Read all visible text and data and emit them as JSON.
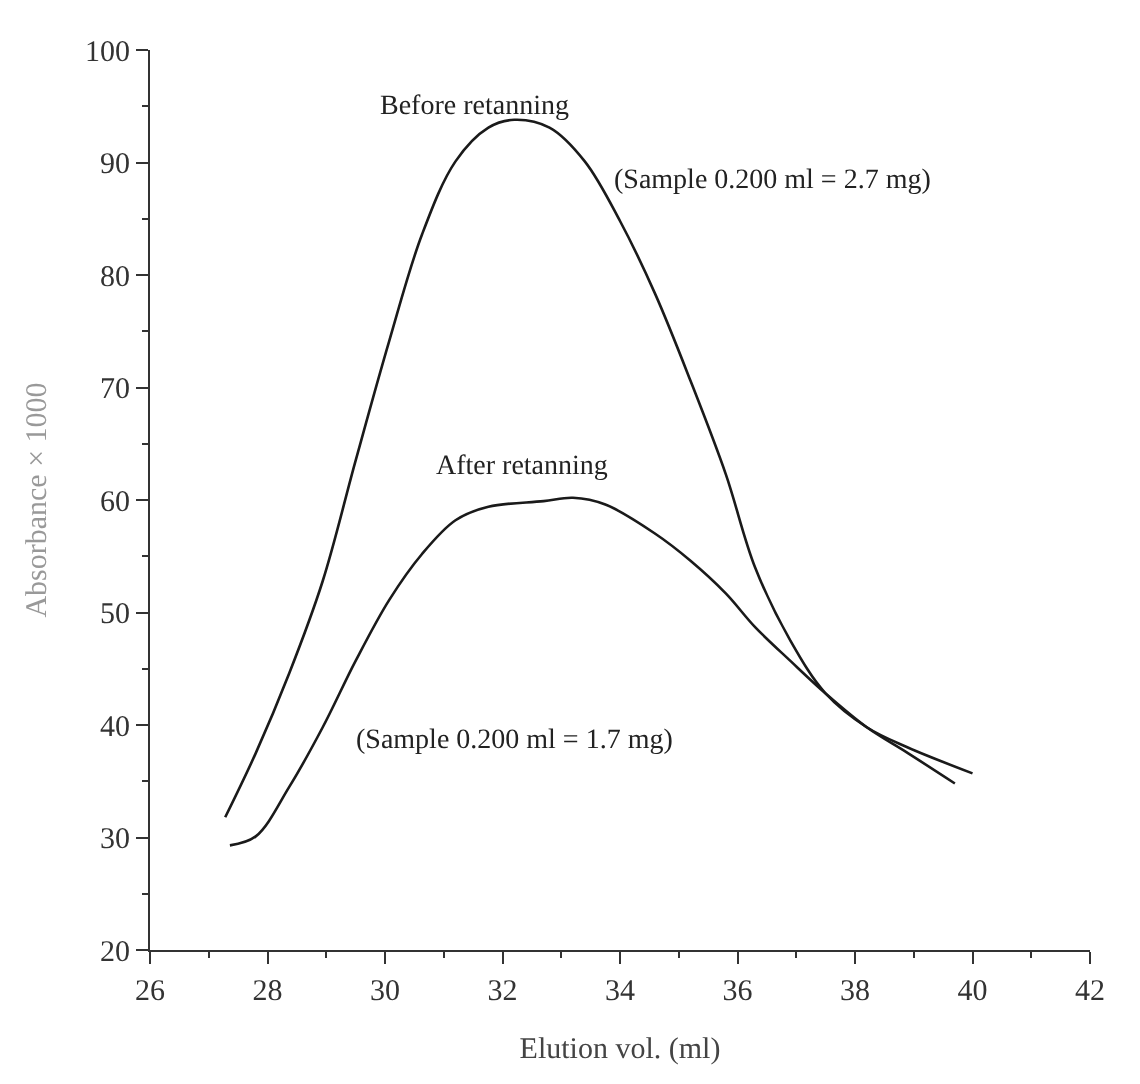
{
  "chart_data": {
    "type": "line",
    "xlabel": "Elution vol. (ml)",
    "ylabel": "Absorbance × 1000",
    "xlim": [
      26,
      42
    ],
    "xticks": [
      26,
      28,
      30,
      32,
      34,
      36,
      38,
      40,
      42
    ],
    "ylim": [
      20,
      100
    ],
    "yticks": [
      20,
      30,
      40,
      50,
      60,
      70,
      80,
      90,
      100
    ],
    "marker": "none",
    "line_style": "solid",
    "series": [
      {
        "color": "#1a1a1a",
        "x": [
          27.28,
          27.8,
          28.37,
          28.94,
          29.5,
          30.07,
          30.63,
          31.2,
          31.76,
          32.2,
          32.8,
          33.4,
          34.0,
          34.6,
          35.2,
          35.8,
          36.3,
          36.9,
          37.5,
          38.2,
          38.9,
          40.0
        ],
        "values": [
          31.8,
          37.5,
          44.6,
          52.8,
          63.5,
          74.1,
          83.6,
          90.1,
          93.1,
          93.8,
          93.1,
          90.1,
          84.8,
          78.3,
          70.6,
          62.3,
          54.0,
          47.5,
          42.8,
          39.8,
          38.0,
          35.7
        ]
      },
      {
        "color": "#1a1a1a",
        "x": [
          27.36,
          27.8,
          28.37,
          28.94,
          29.5,
          30.07,
          30.63,
          31.2,
          31.76,
          32.7,
          33.2,
          33.75,
          34.6,
          35.2,
          35.8,
          36.3,
          36.9,
          37.5,
          38.2,
          38.9,
          39.7
        ],
        "values": [
          29.3,
          30.1,
          34.5,
          39.8,
          45.7,
          51.1,
          55.2,
          58.2,
          59.4,
          59.9,
          60.2,
          59.6,
          57.0,
          54.6,
          51.7,
          48.7,
          45.7,
          42.8,
          39.8,
          37.5,
          34.8
        ]
      }
    ],
    "annotations": [
      "Before retanning",
      "(Sample 0.200 ml = 2.7 mg)",
      "After retanning",
      "(Sample 0.200 ml = 1.7 mg)"
    ]
  }
}
